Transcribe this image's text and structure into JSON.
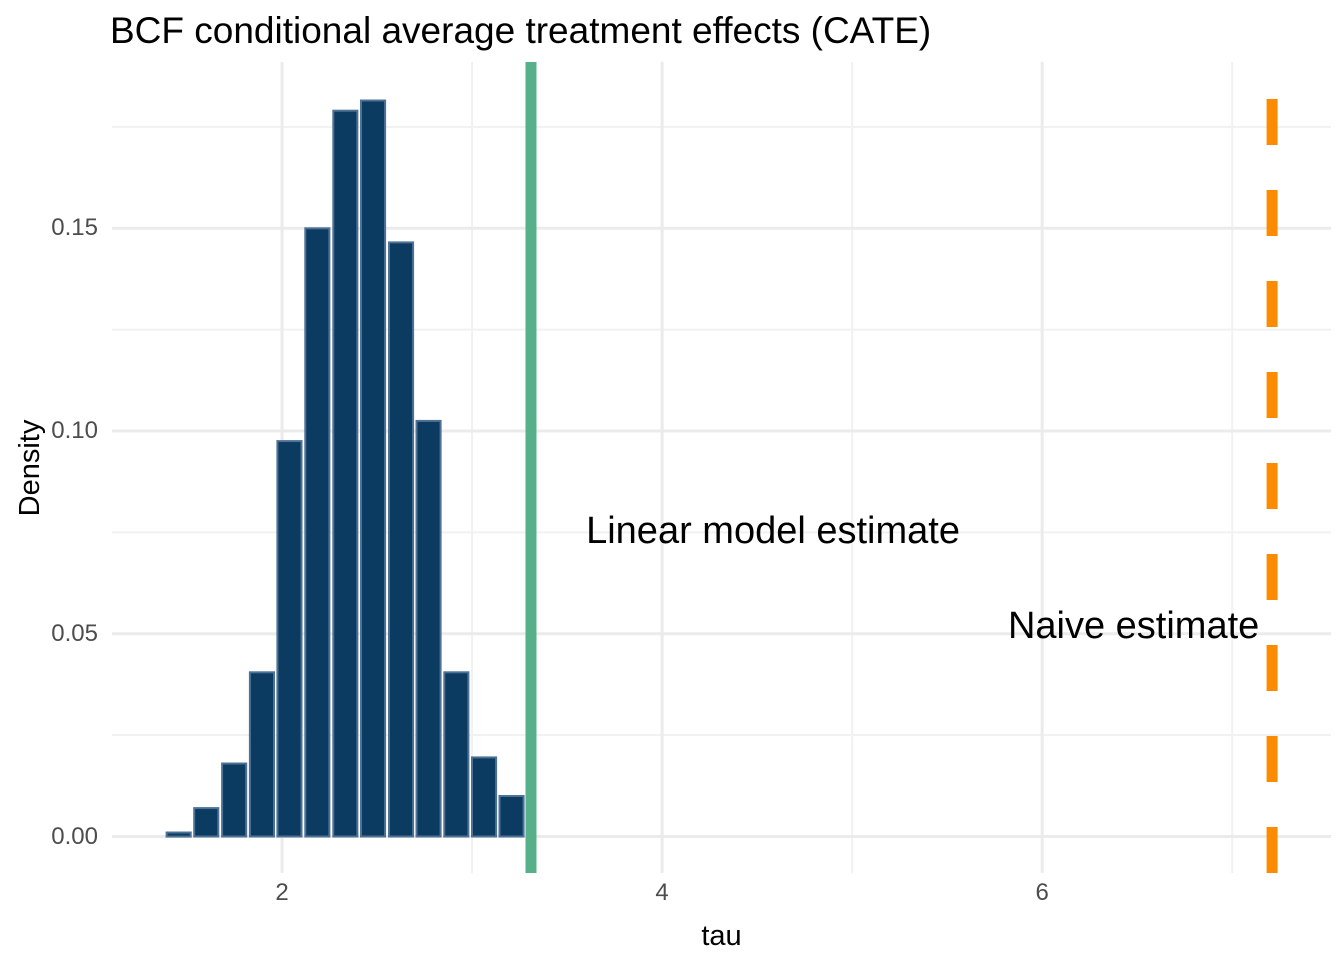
{
  "chart_data": {
    "type": "bar",
    "subtype": "histogram",
    "title": "BCF conditional average treatment effects (CATE)",
    "xlabel": "tau",
    "ylabel": "Density",
    "grid": true,
    "legend": false,
    "xlim": [
      1.105,
      7.52
    ],
    "ylim": [
      -0.009,
      0.191
    ],
    "x_ticks": [
      {
        "value": 2,
        "label": "2"
      },
      {
        "value": 4,
        "label": "4"
      },
      {
        "value": 6,
        "label": "6"
      }
    ],
    "y_ticks": [
      {
        "value": 0.0,
        "label": "0.00"
      },
      {
        "value": 0.05,
        "label": "0.05"
      },
      {
        "value": 0.1,
        "label": "0.10"
      },
      {
        "value": 0.15,
        "label": "0.15"
      }
    ],
    "x_minor": [
      3,
      5,
      7
    ],
    "y_minor": [
      0.025,
      0.075,
      0.125,
      0.175
    ],
    "bins": {
      "binwidth": 0.146,
      "centers": [
        1.456,
        1.601,
        1.748,
        1.894,
        2.039,
        2.186,
        2.333,
        2.479,
        2.626,
        2.771,
        2.917,
        3.063,
        3.208
      ],
      "densities": [
        0.001,
        0.007,
        0.018,
        0.0405,
        0.0975,
        0.15,
        0.179,
        0.1815,
        0.1465,
        0.1025,
        0.0405,
        0.0195,
        0.01
      ],
      "baseline": 0
    },
    "vlines": [
      {
        "name": "linear-model-estimate",
        "x": 3.31,
        "color": "#56B089",
        "style": "solid"
      },
      {
        "name": "naive-estimate",
        "x": 7.21,
        "color": "#FB8B00",
        "style": "dashed"
      }
    ],
    "annotations": [
      {
        "name": "linear-model-estimate-label",
        "text": "Linear model estimate",
        "x": 3.6,
        "y": 0.08
      },
      {
        "name": "naive-estimate-label",
        "text": "Naive estimate",
        "x": 5.82,
        "y": 0.0565
      }
    ],
    "style": {
      "bar_fill": "#0B3B61",
      "bar_stroke": "#4E7296",
      "grid_major": "#EBEBEB",
      "grid_minor": "#F1F1F1",
      "tick_label_color": "#4D4D4D",
      "text_color": "#000000",
      "background": "#FFFFFF"
    }
  }
}
